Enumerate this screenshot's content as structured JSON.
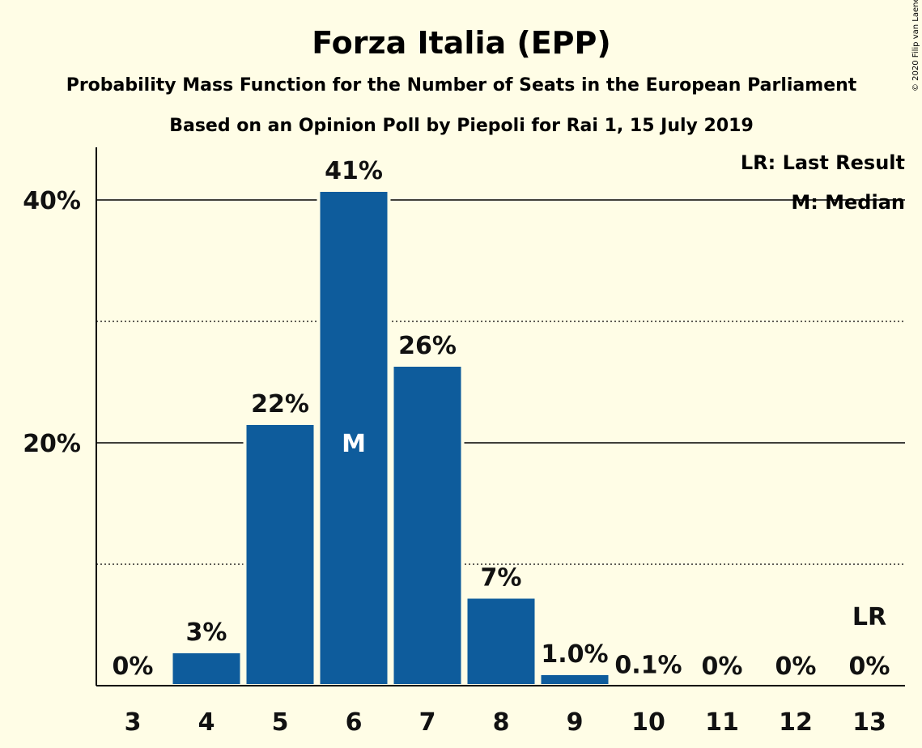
{
  "chart_data": {
    "type": "bar",
    "title": "Forza Italia (EPP)",
    "subtitle": "Probability Mass Function for the Number of Seats in the European Parliament",
    "subtitle2": "Based on an Opinion Poll by Piepoli for Rai 1, 15 July 2019",
    "copyright": "© 2020 Filip van Laenen",
    "categories": [
      "3",
      "4",
      "5",
      "6",
      "7",
      "8",
      "9",
      "10",
      "11",
      "12",
      "13"
    ],
    "values": [
      0,
      2.8,
      21.6,
      40.8,
      26.4,
      7.3,
      1.0,
      0.1,
      0,
      0,
      0
    ],
    "data_labels": [
      "0%",
      "3%",
      "22%",
      "41%",
      "26%",
      "7%",
      "1.0%",
      "0.1%",
      "0%",
      "0%",
      "0%"
    ],
    "ylim": [
      0,
      45
    ],
    "yticks": [
      {
        "value": 20,
        "label": "20%"
      },
      {
        "value": 40,
        "label": "40%"
      }
    ],
    "minor_gridlines": [
      10,
      30
    ],
    "median_category": "6",
    "median_marker": "M",
    "last_result_category": "13",
    "last_result_marker": "LR",
    "legend": {
      "position": "top-right",
      "items": [
        "LR: Last Result",
        "M: Median"
      ]
    },
    "bar_color": "#0e5c9c",
    "background_color": "#fffde6"
  }
}
